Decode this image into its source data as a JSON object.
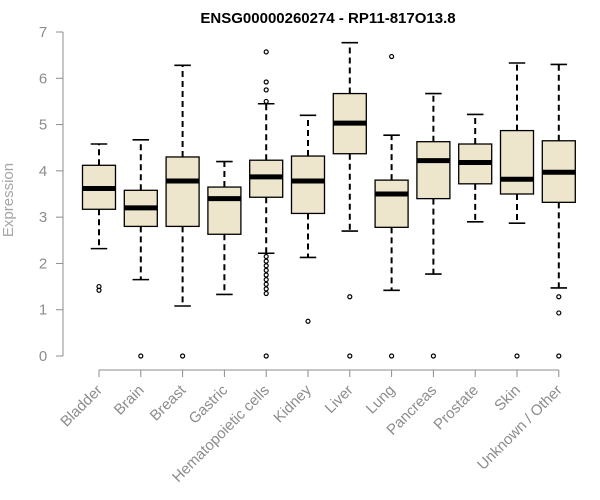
{
  "chart_data": {
    "type": "boxplot",
    "title": "ENSG00000260274 - RP11-817O13.8",
    "xlabel": "",
    "ylabel": "Expression",
    "ylim": [
      0,
      7
    ],
    "yticks": [
      0,
      1,
      2,
      3,
      4,
      5,
      6,
      7
    ],
    "colors": {
      "box_fill": "#ede6cc",
      "box_stroke": "#000000",
      "median": "#000000",
      "axis": "#8c8c8c"
    },
    "categories": [
      "Bladder",
      "Brain",
      "Breast",
      "Gastric",
      "Hematopoietic cells",
      "Kidney",
      "Liver",
      "Lung",
      "Pancreas",
      "Prostate",
      "Skin",
      "Unknown / Other"
    ],
    "boxes": [
      {
        "category": "Bladder",
        "whisker_low": 2.32,
        "q1": 3.17,
        "median": 3.62,
        "q3": 4.12,
        "whisker_high": 4.58,
        "outliers": [
          1.5,
          1.42
        ]
      },
      {
        "category": "Brain",
        "whisker_low": 1.65,
        "q1": 2.8,
        "median": 3.2,
        "q3": 3.58,
        "whisker_high": 4.67,
        "outliers": [
          0
        ]
      },
      {
        "category": "Breast",
        "whisker_low": 1.08,
        "q1": 2.8,
        "median": 3.78,
        "q3": 4.3,
        "whisker_high": 6.28,
        "outliers": [
          0
        ]
      },
      {
        "category": "Gastric",
        "whisker_low": 1.33,
        "q1": 2.63,
        "median": 3.4,
        "q3": 3.65,
        "whisker_high": 4.2,
        "outliers": []
      },
      {
        "category": "Hematopoietic cells",
        "whisker_low": 2.22,
        "q1": 3.43,
        "median": 3.87,
        "q3": 4.23,
        "whisker_high": 5.45,
        "outliers": [
          0,
          1.35,
          1.45,
          1.55,
          1.65,
          1.75,
          1.85,
          1.95,
          2.05,
          2.15,
          5.5,
          5.75,
          5.92,
          6.57
        ]
      },
      {
        "category": "Kidney",
        "whisker_low": 2.13,
        "q1": 3.08,
        "median": 3.78,
        "q3": 4.32,
        "whisker_high": 5.2,
        "outliers": [
          0.75
        ]
      },
      {
        "category": "Liver",
        "whisker_low": 2.7,
        "q1": 4.37,
        "median": 5.03,
        "q3": 5.67,
        "whisker_high": 6.77,
        "outliers": [
          1.28,
          0
        ]
      },
      {
        "category": "Lung",
        "whisker_low": 1.42,
        "q1": 2.78,
        "median": 3.5,
        "q3": 3.8,
        "whisker_high": 4.77,
        "outliers": [
          0,
          6.47
        ]
      },
      {
        "category": "Pancreas",
        "whisker_low": 1.77,
        "q1": 3.4,
        "median": 4.22,
        "q3": 4.63,
        "whisker_high": 5.67,
        "outliers": [
          0
        ]
      },
      {
        "category": "Prostate",
        "whisker_low": 2.9,
        "q1": 3.72,
        "median": 4.18,
        "q3": 4.58,
        "whisker_high": 5.22,
        "outliers": []
      },
      {
        "category": "Skin",
        "whisker_low": 2.87,
        "q1": 3.5,
        "median": 3.82,
        "q3": 4.87,
        "whisker_high": 6.33,
        "outliers": [
          0
        ]
      },
      {
        "category": "Unknown / Other",
        "whisker_low": 1.47,
        "q1": 3.32,
        "median": 3.97,
        "q3": 4.65,
        "whisker_high": 6.3,
        "outliers": [
          1.28,
          0.93,
          0
        ]
      }
    ]
  }
}
